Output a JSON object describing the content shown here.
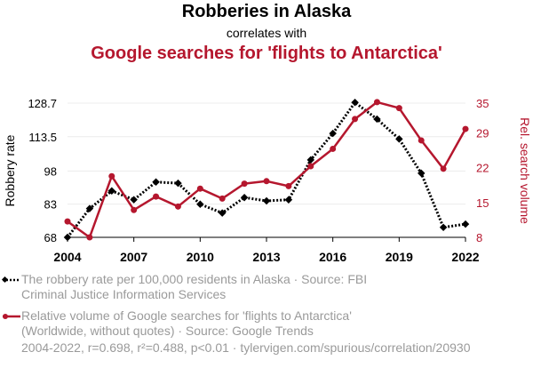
{
  "header": {
    "title": "Robberies in Alaska",
    "subtitle": "correlates with",
    "title2": "Google searches for 'flights to Antarctica'"
  },
  "legend": {
    "series1": "The robbery rate per 100,000 residents in Alaska · Source: FBI Criminal Justice Information Services",
    "series2": "Relative volume of Google searches for 'flights to Antarctica' (Worldwide, without quotes) · Source: Google Trends"
  },
  "footer": "2004-2022, r=0.698, r²=0.488, p<0.01 · tylervigen.com/spurious/correlation/20930",
  "colors": {
    "series1": "#000000",
    "series2": "#b5172e",
    "legend_text": "#9a9a9a"
  },
  "chart_data": {
    "type": "line",
    "x": [
      2004,
      2005,
      2006,
      2007,
      2008,
      2009,
      2010,
      2011,
      2012,
      2013,
      2014,
      2015,
      2016,
      2017,
      2018,
      2019,
      2020,
      2021,
      2022
    ],
    "xticks": [
      "2004",
      "2007",
      "2010",
      "2013",
      "2016",
      "2019",
      "2022"
    ],
    "xlim": [
      2004,
      2022
    ],
    "ylabel": "Robbery rate",
    "ylabel_right": "Rel. search volume",
    "yticks_left": [
      "68",
      "83",
      "98",
      "113.5",
      "128.7"
    ],
    "yticks_right": [
      "8",
      "15",
      "22",
      "29",
      "35"
    ],
    "ylim_left": [
      68,
      128.7
    ],
    "ylim_right": [
      8,
      35
    ],
    "series": [
      {
        "axis": "left",
        "style": "dotted",
        "marker": "diamond",
        "values": [
          68,
          81,
          89,
          85,
          93,
          92.5,
          83,
          79,
          86,
          84.5,
          85,
          103,
          115,
          129,
          121.5,
          112.5,
          97,
          72.5,
          74
        ]
      },
      {
        "axis": "right",
        "style": "solid",
        "marker": "circle",
        "values": [
          11.2,
          8,
          20.3,
          13.5,
          16.2,
          14.2,
          17.8,
          15.8,
          18.8,
          19.3,
          18.3,
          22.3,
          25.8,
          31.8,
          35.2,
          34,
          27.5,
          21.8,
          29.8
        ]
      }
    ],
    "grid": "horizontal"
  }
}
